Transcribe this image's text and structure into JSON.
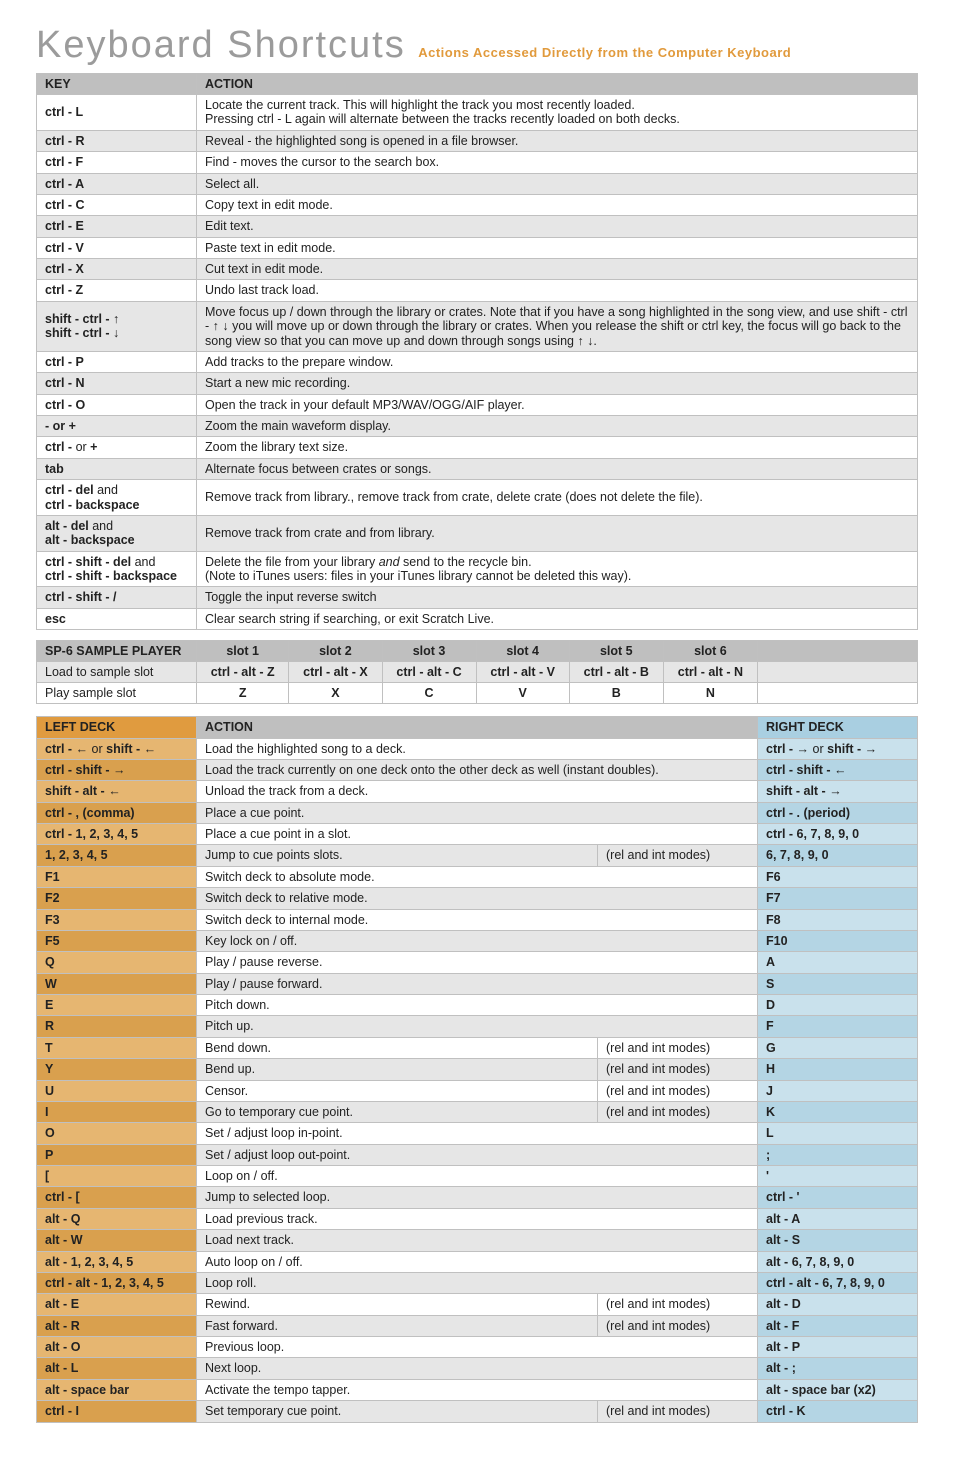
{
  "colors": {
    "left_odd": "#e6b671",
    "left_even": "#d9a04e",
    "action_odd": "#ffffff",
    "action_even": "#e6e6e6",
    "right_odd": "#c9e1ec",
    "right_even": "#b4d5e4"
  },
  "header": {
    "title": "Keyboard Shortcuts",
    "subtitle": "Actions Accessed Directly from the Computer Keyboard"
  },
  "table1": {
    "head": {
      "key": "KEY",
      "action": "ACTION"
    },
    "rows": [
      {
        "key": "ctrl - L",
        "action": "Locate the current track. This will highlight the track you most recently loaded.\nPressing ctrl - L again will alternate between the tracks recently loaded on both decks."
      },
      {
        "key": "ctrl - R",
        "action": "Reveal - the highlighted song is opened in a file browser."
      },
      {
        "key": "ctrl - F",
        "action": "Find - moves the cursor to the search box."
      },
      {
        "key": "ctrl - A",
        "action": "Select all."
      },
      {
        "key": "ctrl - C",
        "action": "Copy text in edit mode."
      },
      {
        "key": "ctrl - E",
        "action": "Edit text."
      },
      {
        "key": "ctrl - V",
        "action": "Paste text in edit mode."
      },
      {
        "key": "ctrl - X",
        "action": "Cut text in edit mode."
      },
      {
        "key": "ctrl - Z",
        "action": "Undo last track load."
      },
      {
        "key": "shift - ctrl - ↑\nshift - ctrl - ↓",
        "action": "Move focus up / down through the library or crates. Note that if you have a song highlighted in the song view, and use shift - ctrl - ↑ ↓ you will move up or down through the library or crates. When you release the shift or ctrl key, the focus will go back to the song view so that you can move up and down through songs using ↑ ↓."
      },
      {
        "key": "ctrl - P",
        "action": "Add tracks to the prepare window."
      },
      {
        "key": "ctrl - N",
        "action": "Start a new mic recording."
      },
      {
        "key": "ctrl - O",
        "action": "Open the track in your default MP3/WAV/OGG/AIF player."
      },
      {
        "key": "- or +",
        "action": "Zoom the main waveform display."
      },
      {
        "key": "ctrl - <span class='normal'>or</span> +",
        "keyHtml": true,
        "action": "Zoom the library text size."
      },
      {
        "key": "tab",
        "action": "Alternate focus between crates or songs."
      },
      {
        "key": "ctrl - del <span class='normal'>and</span>\nctrl - backspace",
        "keyHtml": true,
        "action": "Remove track from library., remove track from crate, delete crate (does not delete the file)."
      },
      {
        "key": "alt - del <span class='normal'>and</span>\nalt - backspace",
        "keyHtml": true,
        "action": "Remove track from crate and from library."
      },
      {
        "key": "ctrl - shift - del <span class='normal'>and</span>\nctrl - shift - backspace",
        "keyHtml": true,
        "action": "Delete the file from your library <span class='italic'>and</span> send to the recycle bin.\n(Note to iTunes users: files in your iTunes library cannot be deleted this way).",
        "actionHtml": true
      },
      {
        "key": "ctrl - shift - /",
        "action": "Toggle the input reverse switch"
      },
      {
        "key": "esc",
        "action": "Clear search string if searching, or exit Scratch Live."
      }
    ]
  },
  "table2": {
    "head": {
      "label": "SP-6 SAMPLE PLAYER",
      "slots": [
        "slot 1",
        "slot 2",
        "slot 3",
        "slot 4",
        "slot 5",
        "slot 6"
      ]
    },
    "rows": [
      {
        "label": "Load to sample slot",
        "cells": [
          "ctrl - alt - Z",
          "ctrl - alt - X",
          "ctrl - alt - C",
          "ctrl - alt - V",
          "ctrl - alt - B",
          "ctrl - alt - N"
        ]
      },
      {
        "label": "Play sample slot",
        "cells": [
          "Z",
          "X",
          "C",
          "V",
          "B",
          "N"
        ]
      }
    ]
  },
  "table3": {
    "head": {
      "left": "LEFT DECK",
      "action": "ACTION",
      "right": "RIGHT DECK"
    },
    "rows": [
      {
        "left": "ctrl - ← <span class='normal'>or</span> shift - ←",
        "leftHtml": true,
        "action": "Load the highlighted song to a deck.",
        "right": "ctrl - → <span class='normal'>or</span> shift - →",
        "rightHtml": true
      },
      {
        "left": "ctrl - shift - →",
        "action": "Load the track currently on one deck onto the other deck as well (instant doubles).",
        "right": "ctrl - shift - ←"
      },
      {
        "left": "shift - alt - ←",
        "action": "Unload the track from a deck.",
        "right": "shift - alt - →"
      },
      {
        "left": "ctrl - , (comma)",
        "action": "Place a cue point.",
        "right": "ctrl - . (period)"
      },
      {
        "left": "ctrl - 1, 2, 3, 4, 5",
        "action": "Place a cue point in a slot.",
        "right": "ctrl - 6, 7, 8, 9, 0"
      },
      {
        "left": "1, 2, 3, 4, 5",
        "action": "Jump to cue points slots.",
        "mode": "(rel and int modes)",
        "right": "6, 7, 8, 9, 0"
      },
      {
        "left": "F1",
        "action": "Switch deck to absolute mode.",
        "right": "F6"
      },
      {
        "left": "F2",
        "action": "Switch deck to relative mode.",
        "right": "F7"
      },
      {
        "left": "F3",
        "action": "Switch deck to internal mode.",
        "right": "F8"
      },
      {
        "left": "F5",
        "action": "Key lock on / off.",
        "right": "F10"
      },
      {
        "left": "Q",
        "action": "Play / pause reverse.",
        "right": "A"
      },
      {
        "left": "W",
        "action": "Play / pause forward.",
        "right": "S"
      },
      {
        "left": "E",
        "action": "Pitch down.",
        "right": "D"
      },
      {
        "left": "R",
        "action": "Pitch up.",
        "right": "F"
      },
      {
        "left": "T",
        "action": "Bend down.",
        "mode": "(rel and int modes)",
        "right": "G"
      },
      {
        "left": "Y",
        "action": "Bend up.",
        "mode": "(rel and int modes)",
        "right": "H"
      },
      {
        "left": "U",
        "action": "Censor.",
        "mode": "(rel and int modes)",
        "right": "J"
      },
      {
        "left": "I",
        "action": "Go to temporary cue point.",
        "mode": "(rel and int modes)",
        "right": "K"
      },
      {
        "left": "O",
        "action": "Set / adjust loop in-point.",
        "right": "L"
      },
      {
        "left": "P",
        "action": "Set / adjust loop out-point.",
        "right": ";"
      },
      {
        "left": "[",
        "action": "Loop on / off.",
        "right": "'"
      },
      {
        "left": "ctrl - [",
        "action": "Jump to selected loop.",
        "right": "ctrl - '"
      },
      {
        "left": "alt - Q",
        "action": "Load previous track.",
        "right": "alt - A"
      },
      {
        "left": "alt - W",
        "action": "Load next track.",
        "right": "alt - S"
      },
      {
        "left": "alt - 1, 2, 3, 4, 5",
        "action": "Auto loop on / off.",
        "right": "alt - 6, 7, 8, 9, 0"
      },
      {
        "left": "ctrl - alt - 1, 2, 3, 4, 5",
        "action": "Loop roll.",
        "right": "ctrl - alt - 6, 7, 8, 9, 0"
      },
      {
        "left": "alt - E",
        "action": "Rewind.",
        "mode": "(rel and int modes)",
        "right": "alt - D"
      },
      {
        "left": "alt - R",
        "action": "Fast forward.",
        "mode": "(rel and int modes)",
        "right": "alt - F"
      },
      {
        "left": "alt - O",
        "action": "Previous loop.",
        "right": "alt - P"
      },
      {
        "left": "alt - L",
        "action": "Next loop.",
        "right": "alt - ;"
      },
      {
        "left": "alt - space bar",
        "action": "Activate the tempo tapper.",
        "right": "alt - space bar (x2)"
      },
      {
        "left": "ctrl - I",
        "action": "Set temporary cue point.",
        "mode": "(rel and int modes)",
        "right": "ctrl - K"
      }
    ]
  }
}
